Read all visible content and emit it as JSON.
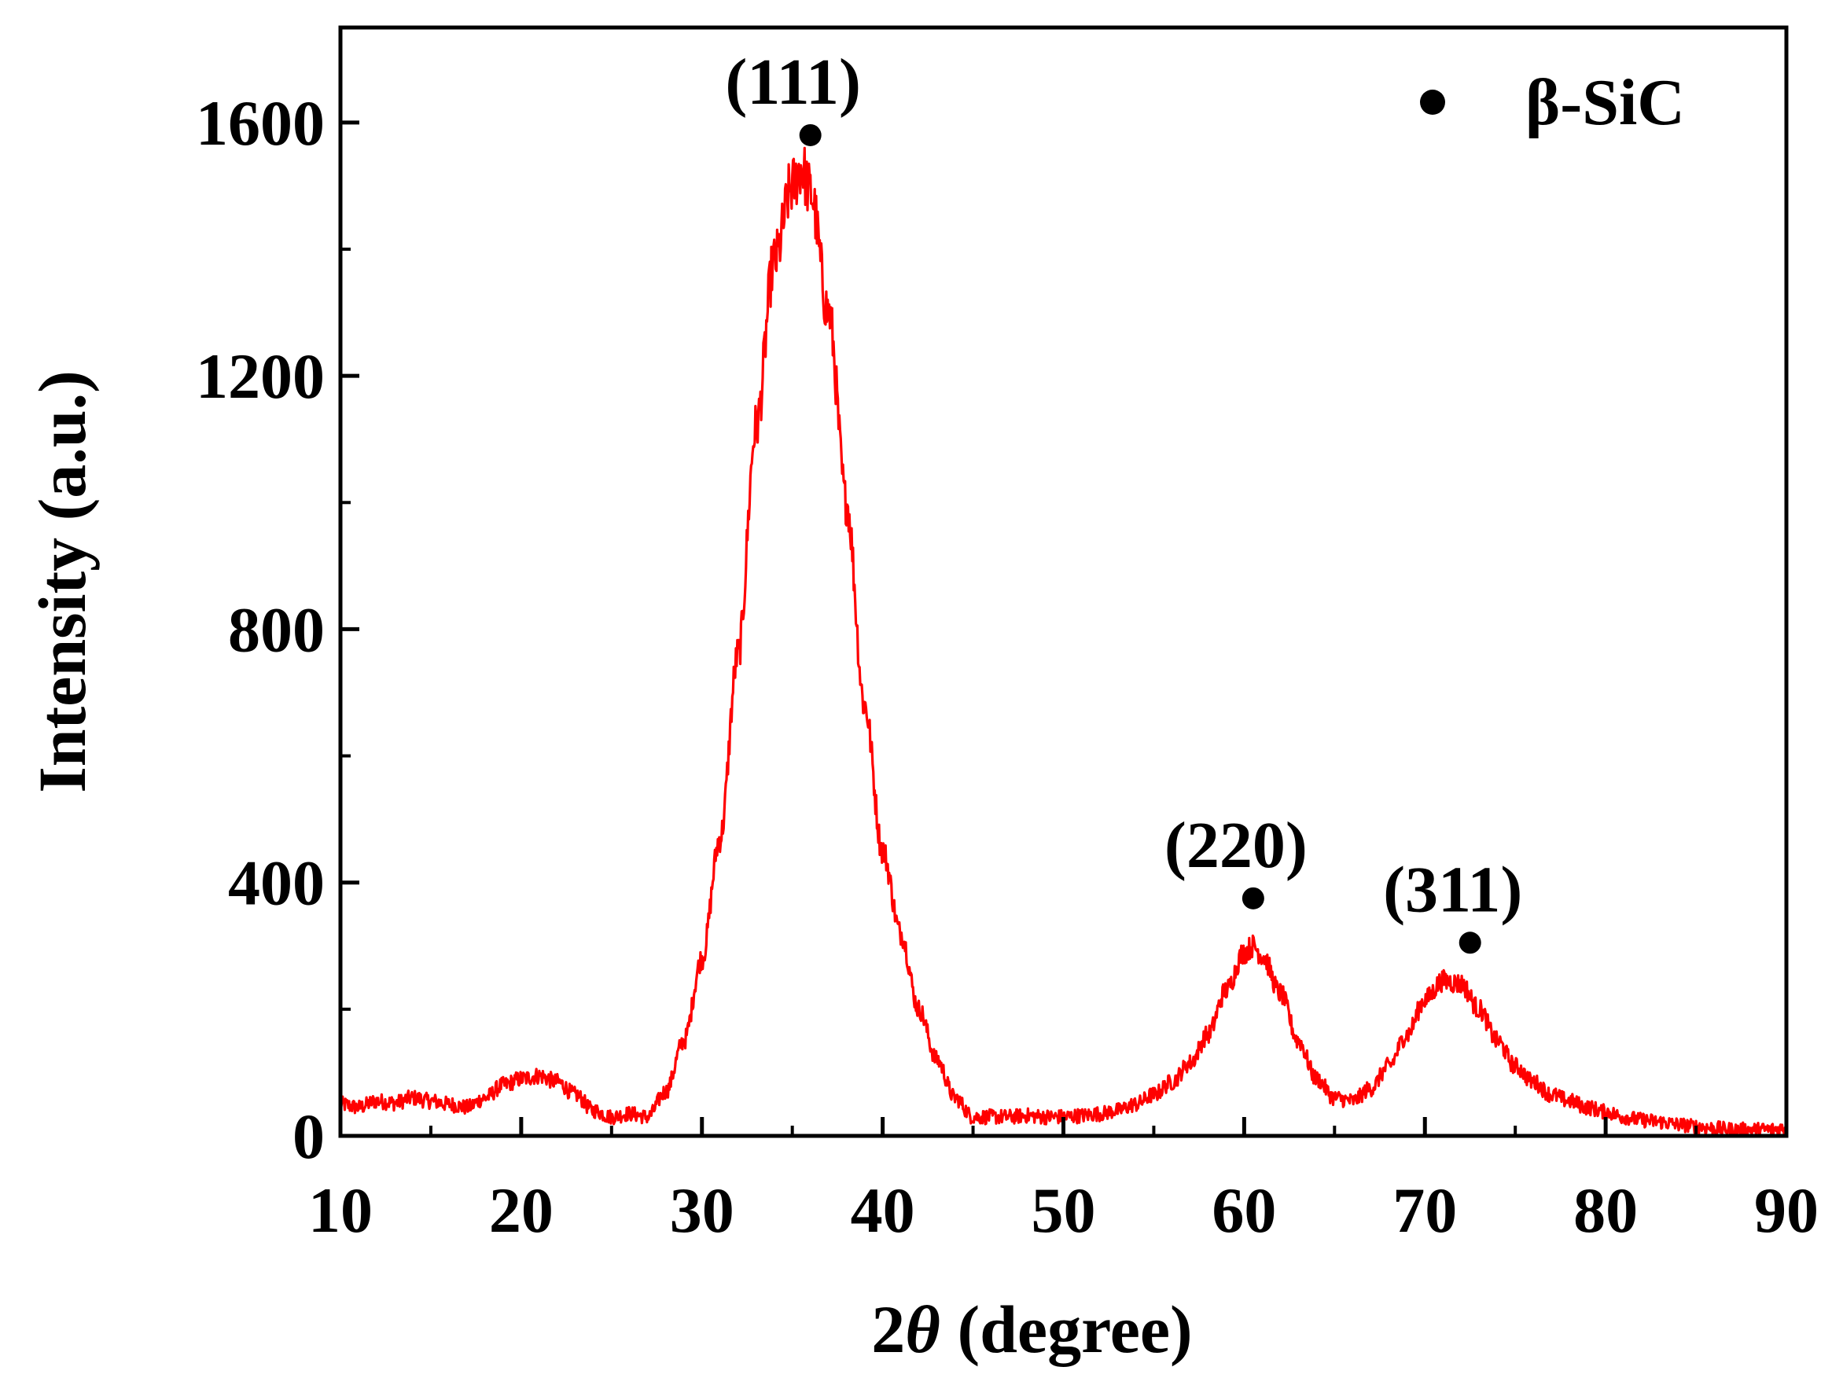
{
  "chart_data": {
    "type": "line",
    "title": "",
    "xlabel": "2θ (degree)",
    "xlabel_parts": {
      "prefix": "2",
      "symbol": "θ",
      "suffix": " (degree)"
    },
    "ylabel": "Intensity (a.u.)",
    "xlim": [
      10,
      90
    ],
    "ylim": [
      0,
      1750
    ],
    "x_ticks": [
      10,
      20,
      30,
      40,
      50,
      60,
      70,
      80,
      90
    ],
    "y_ticks": [
      0,
      400,
      800,
      1200,
      1600
    ],
    "grid": false,
    "legend": {
      "position": "top-right",
      "entries": [
        {
          "marker": "circle",
          "label": "β-SiC",
          "color": "#000000"
        }
      ]
    },
    "series": [
      {
        "color": "#ff0000",
        "x": [
          10,
          11,
          12,
          13,
          14,
          15,
          16,
          17,
          18,
          19,
          20,
          21,
          22,
          23,
          24,
          25,
          26,
          27,
          28,
          29,
          30,
          31,
          32,
          33,
          34,
          35,
          35.5,
          36,
          37,
          38,
          39,
          40,
          41,
          42,
          43,
          44,
          45,
          46,
          47,
          48,
          49,
          50,
          51,
          52,
          53,
          54,
          55,
          56,
          57,
          58,
          59,
          60,
          60.5,
          61,
          62,
          63,
          64,
          65,
          66,
          67,
          68,
          69,
          70,
          71,
          72,
          73,
          74,
          75,
          76,
          77,
          78,
          79,
          80,
          81,
          82,
          83,
          84,
          85,
          86,
          87,
          88,
          89,
          90
        ],
        "y": [
          50,
          45,
          55,
          52,
          60,
          55,
          50,
          45,
          60,
          80,
          90,
          95,
          85,
          65,
          40,
          30,
          35,
          30,
          70,
          150,
          280,
          470,
          760,
          1120,
          1380,
          1500,
          1530,
          1490,
          1300,
          1000,
          680,
          450,
          320,
          200,
          120,
          60,
          30,
          30,
          30,
          32,
          30,
          30,
          32,
          35,
          40,
          50,
          65,
          85,
          115,
          160,
          230,
          290,
          300,
          285,
          225,
          150,
          90,
          60,
          55,
          75,
          110,
          160,
          215,
          245,
          240,
          200,
          150,
          110,
          85,
          65,
          55,
          45,
          38,
          30,
          25,
          22,
          18,
          15,
          12,
          10,
          10,
          10,
          12
        ]
      }
    ],
    "annotations": [
      {
        "label": "(111)",
        "x": 36,
        "y": 1580
      },
      {
        "label": "(220)",
        "x": 60.5,
        "y": 375
      },
      {
        "label": "(311)",
        "x": 72.5,
        "y": 305
      }
    ]
  }
}
